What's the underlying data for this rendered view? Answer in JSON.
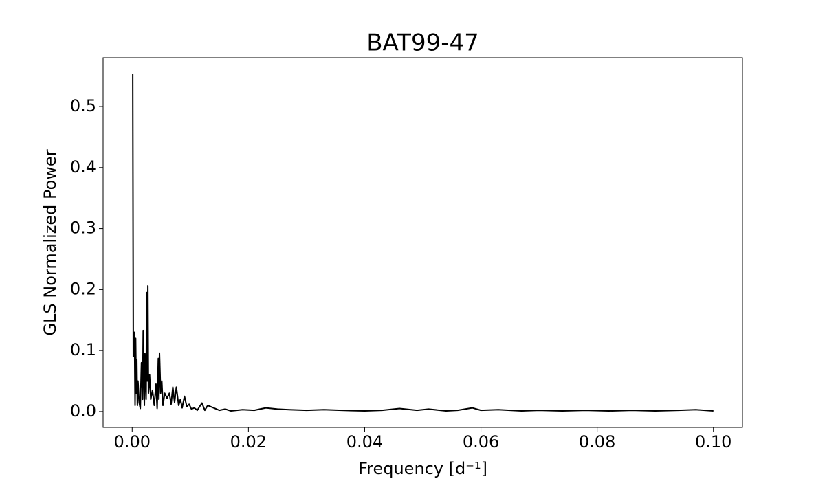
{
  "chart_data": {
    "type": "line",
    "title": "BAT99-47",
    "x_label": "Frequency [d⁻¹]",
    "y_label": "GLS Normalized Power",
    "color": "#000000",
    "grid": false,
    "xlim": [
      -0.005,
      0.105
    ],
    "ylim": [
      -0.026,
      0.58
    ],
    "xticks": [
      {
        "value": 0,
        "label": "0.00"
      },
      0.02,
      0.04,
      0.06,
      0.08,
      {
        "value": 0.1,
        "label": "0.10"
      }
    ],
    "yticks": [
      {
        "value": 0,
        "label": "0.0"
      },
      0.1,
      0.2,
      0.3,
      0.4,
      0.5
    ],
    "x": [
      0.0001,
      0.0002,
      0.0004,
      0.0005,
      0.0006,
      0.0007,
      0.0008,
      0.0009,
      0.001,
      0.0012,
      0.0014,
      0.0016,
      0.0018,
      0.0019,
      0.0021,
      0.0022,
      0.0024,
      0.0025,
      0.0026,
      0.0027,
      0.0028,
      0.003,
      0.0032,
      0.0035,
      0.0038,
      0.0041,
      0.0043,
      0.0045,
      0.0046,
      0.0047,
      0.0049,
      0.0051,
      0.0053,
      0.0056,
      0.006,
      0.0064,
      0.0067,
      0.007,
      0.0073,
      0.0076,
      0.008,
      0.0083,
      0.0086,
      0.009,
      0.0094,
      0.0098,
      0.0102,
      0.0107,
      0.0112,
      0.012,
      0.0125,
      0.013,
      0.014,
      0.015,
      0.016,
      0.017,
      0.019,
      0.021,
      0.023,
      0.025,
      0.027,
      0.03,
      0.033,
      0.036,
      0.04,
      0.043,
      0.046,
      0.049,
      0.051,
      0.054,
      0.056,
      0.0585,
      0.06,
      0.063,
      0.067,
      0.07,
      0.074,
      0.078,
      0.082,
      0.086,
      0.09,
      0.094,
      0.097,
      0.1
    ],
    "values": [
      0.553,
      0.09,
      0.13,
      0.01,
      0.12,
      0.03,
      0.085,
      0.01,
      0.05,
      0.015,
      0.005,
      0.08,
      0.02,
      0.133,
      0.01,
      0.095,
      0.02,
      0.195,
      0.05,
      0.206,
      0.03,
      0.06,
      0.02,
      0.035,
      0.01,
      0.045,
      0.005,
      0.087,
      0.02,
      0.096,
      0.03,
      0.05,
      0.01,
      0.03,
      0.022,
      0.03,
      0.012,
      0.04,
      0.015,
      0.04,
      0.01,
      0.02,
      0.006,
      0.025,
      0.008,
      0.012,
      0.004,
      0.006,
      0.002,
      0.014,
      0.002,
      0.01,
      0.006,
      0.002,
      0.004,
      0.001,
      0.003,
      0.002,
      0.006,
      0.004,
      0.003,
      0.002,
      0.003,
      0.002,
      0.001,
      0.002,
      0.005,
      0.002,
      0.004,
      0.001,
      0.002,
      0.006,
      0.002,
      0.003,
      0.001,
      0.002,
      0.001,
      0.002,
      0.001,
      0.002,
      0.001,
      0.002,
      0.003,
      0.001
    ]
  }
}
